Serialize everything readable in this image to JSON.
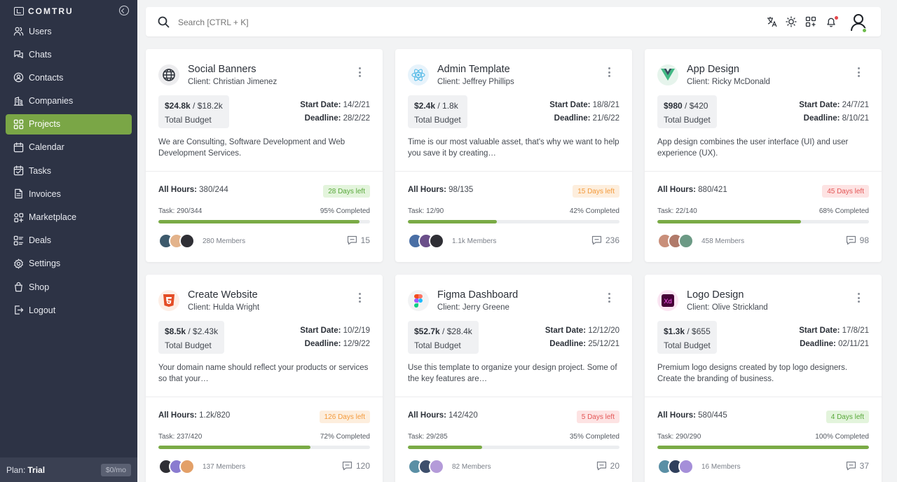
{
  "brand": "COMTRU",
  "nav": [
    {
      "label": "Users",
      "icon": "users-icon"
    },
    {
      "label": "Chats",
      "icon": "chat-icon"
    },
    {
      "label": "Contacts",
      "icon": "contact-icon"
    },
    {
      "label": "Companies",
      "icon": "companies-icon"
    },
    {
      "label": "Projects",
      "icon": "projects-icon",
      "active": true
    },
    {
      "label": "Calendar",
      "icon": "calendar-icon"
    },
    {
      "label": "Tasks",
      "icon": "tasks-icon"
    },
    {
      "label": "Invoices",
      "icon": "invoice-icon"
    },
    {
      "label": "Marketplace",
      "icon": "marketplace-icon"
    },
    {
      "label": "Deals",
      "icon": "deals-icon"
    },
    {
      "label": "Settings",
      "icon": "settings-icon"
    },
    {
      "label": "Shop",
      "icon": "shop-icon"
    },
    {
      "label": "Logout",
      "icon": "logout-icon"
    }
  ],
  "plan": {
    "label": "Plan:",
    "value": "Trial",
    "price": "$0/mo"
  },
  "search": {
    "placeholder": "Search [CTRL + K]"
  },
  "colors": {
    "accent": "#7aa646",
    "sidebar": "#2d3345"
  },
  "projects": [
    {
      "title": "Social Banners",
      "client_label": "Client:",
      "client": "Christian Jimenez",
      "budget_used": "$24.8k",
      "budget_total": "/ $18.2k",
      "budget_label": "Total Budget",
      "start_label": "Start Date:",
      "start": "14/2/21",
      "deadline_label": "Deadline:",
      "deadline": "28/2/22",
      "description": "We are Consulting, Software Development and Web Development Services.",
      "hours_label": "All Hours:",
      "hours": "380/244",
      "days_left": "28 Days left",
      "status": "success",
      "task": "Task: 290/344",
      "completed": "95% Completed",
      "progress": 0.95,
      "members": "280 Members",
      "comments": "15",
      "icon": "globe-icon"
    },
    {
      "title": "Admin Template",
      "client_label": "Client:",
      "client": "Jeffrey Phillips",
      "budget_used": "$2.4k",
      "budget_total": "/ 1.8k",
      "budget_label": "Total Budget",
      "start_label": "Start Date:",
      "start": "18/8/21",
      "deadline_label": "Deadline:",
      "deadline": "21/6/22",
      "description": "Time is our most valuable asset, that's why we want to help you save it by creating…",
      "hours_label": "All Hours:",
      "hours": "98/135",
      "days_left": "15 Days left",
      "status": "warning",
      "task": "Task: 12/90",
      "completed": "42% Completed",
      "progress": 0.42,
      "members": "1.1k Members",
      "comments": "236",
      "icon": "react-icon"
    },
    {
      "title": "App Design",
      "client_label": "Client:",
      "client": "Ricky McDonald",
      "budget_used": "$980",
      "budget_total": "/ $420",
      "budget_label": "Total Budget",
      "start_label": "Start Date:",
      "start": "24/7/21",
      "deadline_label": "Deadline:",
      "deadline": "8/10/21",
      "description": "App design combines the user interface (UI) and user experience (UX).",
      "hours_label": "All Hours:",
      "hours": "880/421",
      "days_left": "45 Days left",
      "status": "danger",
      "task": "Task: 22/140",
      "completed": "68% Completed",
      "progress": 0.68,
      "members": "458 Members",
      "comments": "98",
      "icon": "vue-icon"
    },
    {
      "title": "Create Website",
      "client_label": "Client:",
      "client": "Hulda Wright",
      "budget_used": "$8.5k",
      "budget_total": "/ $2.43k",
      "budget_label": "Total Budget",
      "start_label": "Start Date:",
      "start": "10/2/19",
      "deadline_label": "Deadline:",
      "deadline": "12/9/22",
      "description": "Your domain name should reflect your products or services so that your…",
      "hours_label": "All Hours:",
      "hours": "1.2k/820",
      "days_left": "126 Days left",
      "status": "warning",
      "task": "Task: 237/420",
      "completed": "72% Completed",
      "progress": 0.72,
      "members": "137 Members",
      "comments": "120",
      "icon": "html5-icon"
    },
    {
      "title": "Figma Dashboard",
      "client_label": "Client:",
      "client": "Jerry Greene",
      "budget_used": "$52.7k",
      "budget_total": "/ $28.4k",
      "budget_label": "Total Budget",
      "start_label": "Start Date:",
      "start": "12/12/20",
      "deadline_label": "Deadline:",
      "deadline": "25/12/21",
      "description": "Use this template to organize your design project. Some of the key features are…",
      "hours_label": "All Hours:",
      "hours": "142/420",
      "days_left": "5 Days left",
      "status": "danger",
      "task": "Task: 29/285",
      "completed": "35% Completed",
      "progress": 0.35,
      "members": "82 Members",
      "comments": "20",
      "icon": "figma-icon"
    },
    {
      "title": "Logo Design",
      "client_label": "Client:",
      "client": "Olive Strickland",
      "budget_used": "$1.3k",
      "budget_total": "/ $655",
      "budget_label": "Total Budget",
      "start_label": "Start Date:",
      "start": "17/8/21",
      "deadline_label": "Deadline:",
      "deadline": "02/11/21",
      "description": "Premium logo designs created by top logo designers. Create the branding of business.",
      "hours_label": "All Hours:",
      "hours": "580/445",
      "days_left": "4 Days left",
      "status": "success",
      "task": "Task: 290/290",
      "completed": "100% Completed",
      "progress": 1.0,
      "members": "16 Members",
      "comments": "37",
      "icon": "xd-icon"
    }
  ]
}
